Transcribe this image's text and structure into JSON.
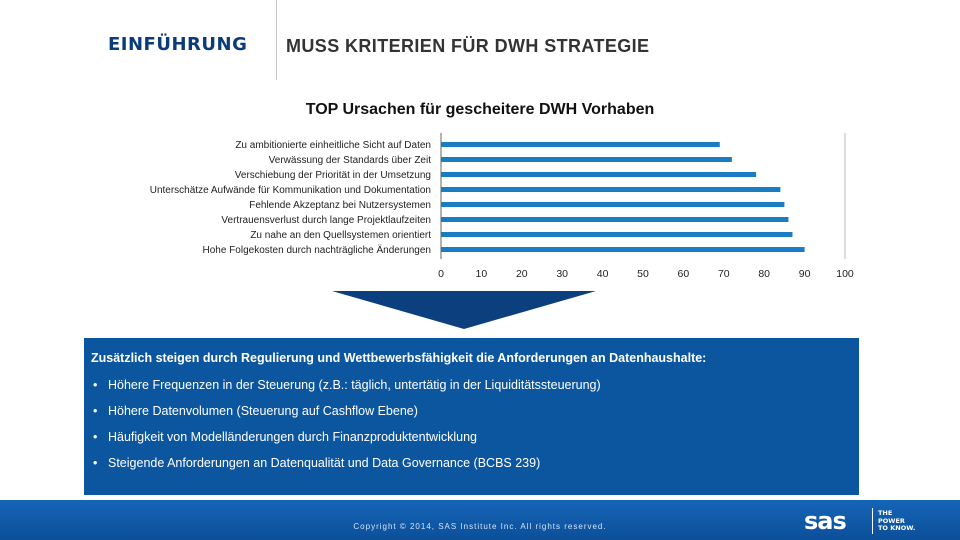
{
  "header": {
    "section": "EINFÜHRUNG",
    "title": "MUSS KRITERIEN FÜR DWH STRATEGIE"
  },
  "chart_data": {
    "type": "bar",
    "orientation": "horizontal",
    "title": "TOP Ursachen für gescheitere DWH Vorhaben",
    "categories": [
      "Zu ambitionierte einheitliche Sicht auf Daten",
      "Verwässung der Standards über Zeit",
      "Verschiebung der Priorität in der Umsetzung",
      "Unterschätze Aufwände für Kommunikation und Dokumentation",
      "Fehlende Akzeptanz bei Nutzersystemen",
      "Vertrauensverlust durch lange Projektlaufzeiten",
      "Zu nahe an den Quellsystemen orientiert",
      "Hohe Folgekosten durch nachträgliche Änderungen"
    ],
    "values": [
      69,
      72,
      78,
      84,
      85,
      86,
      87,
      90
    ],
    "xlim": [
      0,
      100
    ],
    "xticks": [
      "0",
      "10",
      "20",
      "30",
      "40",
      "50",
      "60",
      "70",
      "80",
      "90",
      "100"
    ],
    "xlabel": "",
    "ylabel": "",
    "grid": false,
    "legend": "none",
    "bar_color": "#1a7cc2"
  },
  "box": {
    "heading": "Zusätzlich steigen durch Regulierung und Wettbewerbsfähigkeit die Anforderungen an Datenhaushalte:",
    "bullet": "•",
    "items": [
      "Höhere Frequenzen in der Steuerung (z.B.: täglich, untertätig in der Liquiditätssteuerung)",
      "Höhere Datenvolumen (Steuerung auf Cashflow Ebene)",
      "Häufigkeit von Modelländerungen durch Finanzproduktentwicklung",
      "Steigende Anforderungen an Datenqualität und Data Governance (BCBS 239)"
    ]
  },
  "footer": {
    "copyright": "Copyright © 2014, SAS Institute Inc. All rights reserved.",
    "logo_text": "sas",
    "tagline": [
      "THE",
      "POWER",
      "TO KNOW."
    ]
  },
  "colors": {
    "header_blue": "#0a3b7a",
    "arrow": "#0c3f7e",
    "box": "#0c56a0",
    "footer": "#1565b8"
  }
}
